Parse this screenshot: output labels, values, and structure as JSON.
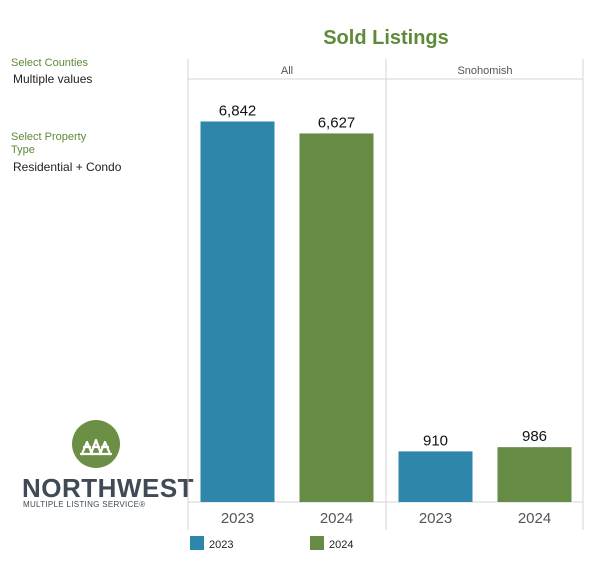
{
  "filters": {
    "counties_label": "Select Counties",
    "counties_value": "Multiple values",
    "property_type_label": "Select Property Type",
    "property_type_value": "Residential + Condo"
  },
  "logo": {
    "name": "NORTHWEST",
    "tagline": "MULTIPLE LISTING SERVICE®",
    "icon": "nwmls-houses-icon"
  },
  "colors": {
    "title": "#5e8a3a",
    "series_2023": "#2e86ab",
    "series_2024": "#668b44"
  },
  "chart_data": {
    "type": "bar",
    "title": "Sold Listings",
    "panels": [
      "All",
      "Snohomish"
    ],
    "categories": [
      "2023",
      "2024"
    ],
    "series": [
      {
        "name": "2023",
        "values": [
          6842,
          910
        ]
      },
      {
        "name": "2024",
        "values": [
          6627,
          986
        ]
      }
    ],
    "value_labels": [
      [
        "6,842",
        "6,627"
      ],
      [
        "910",
        "986"
      ]
    ],
    "ylim": [
      0,
      7300
    ],
    "legend": [
      "2023",
      "2024"
    ],
    "legend_position": "bottom",
    "grid": false
  }
}
